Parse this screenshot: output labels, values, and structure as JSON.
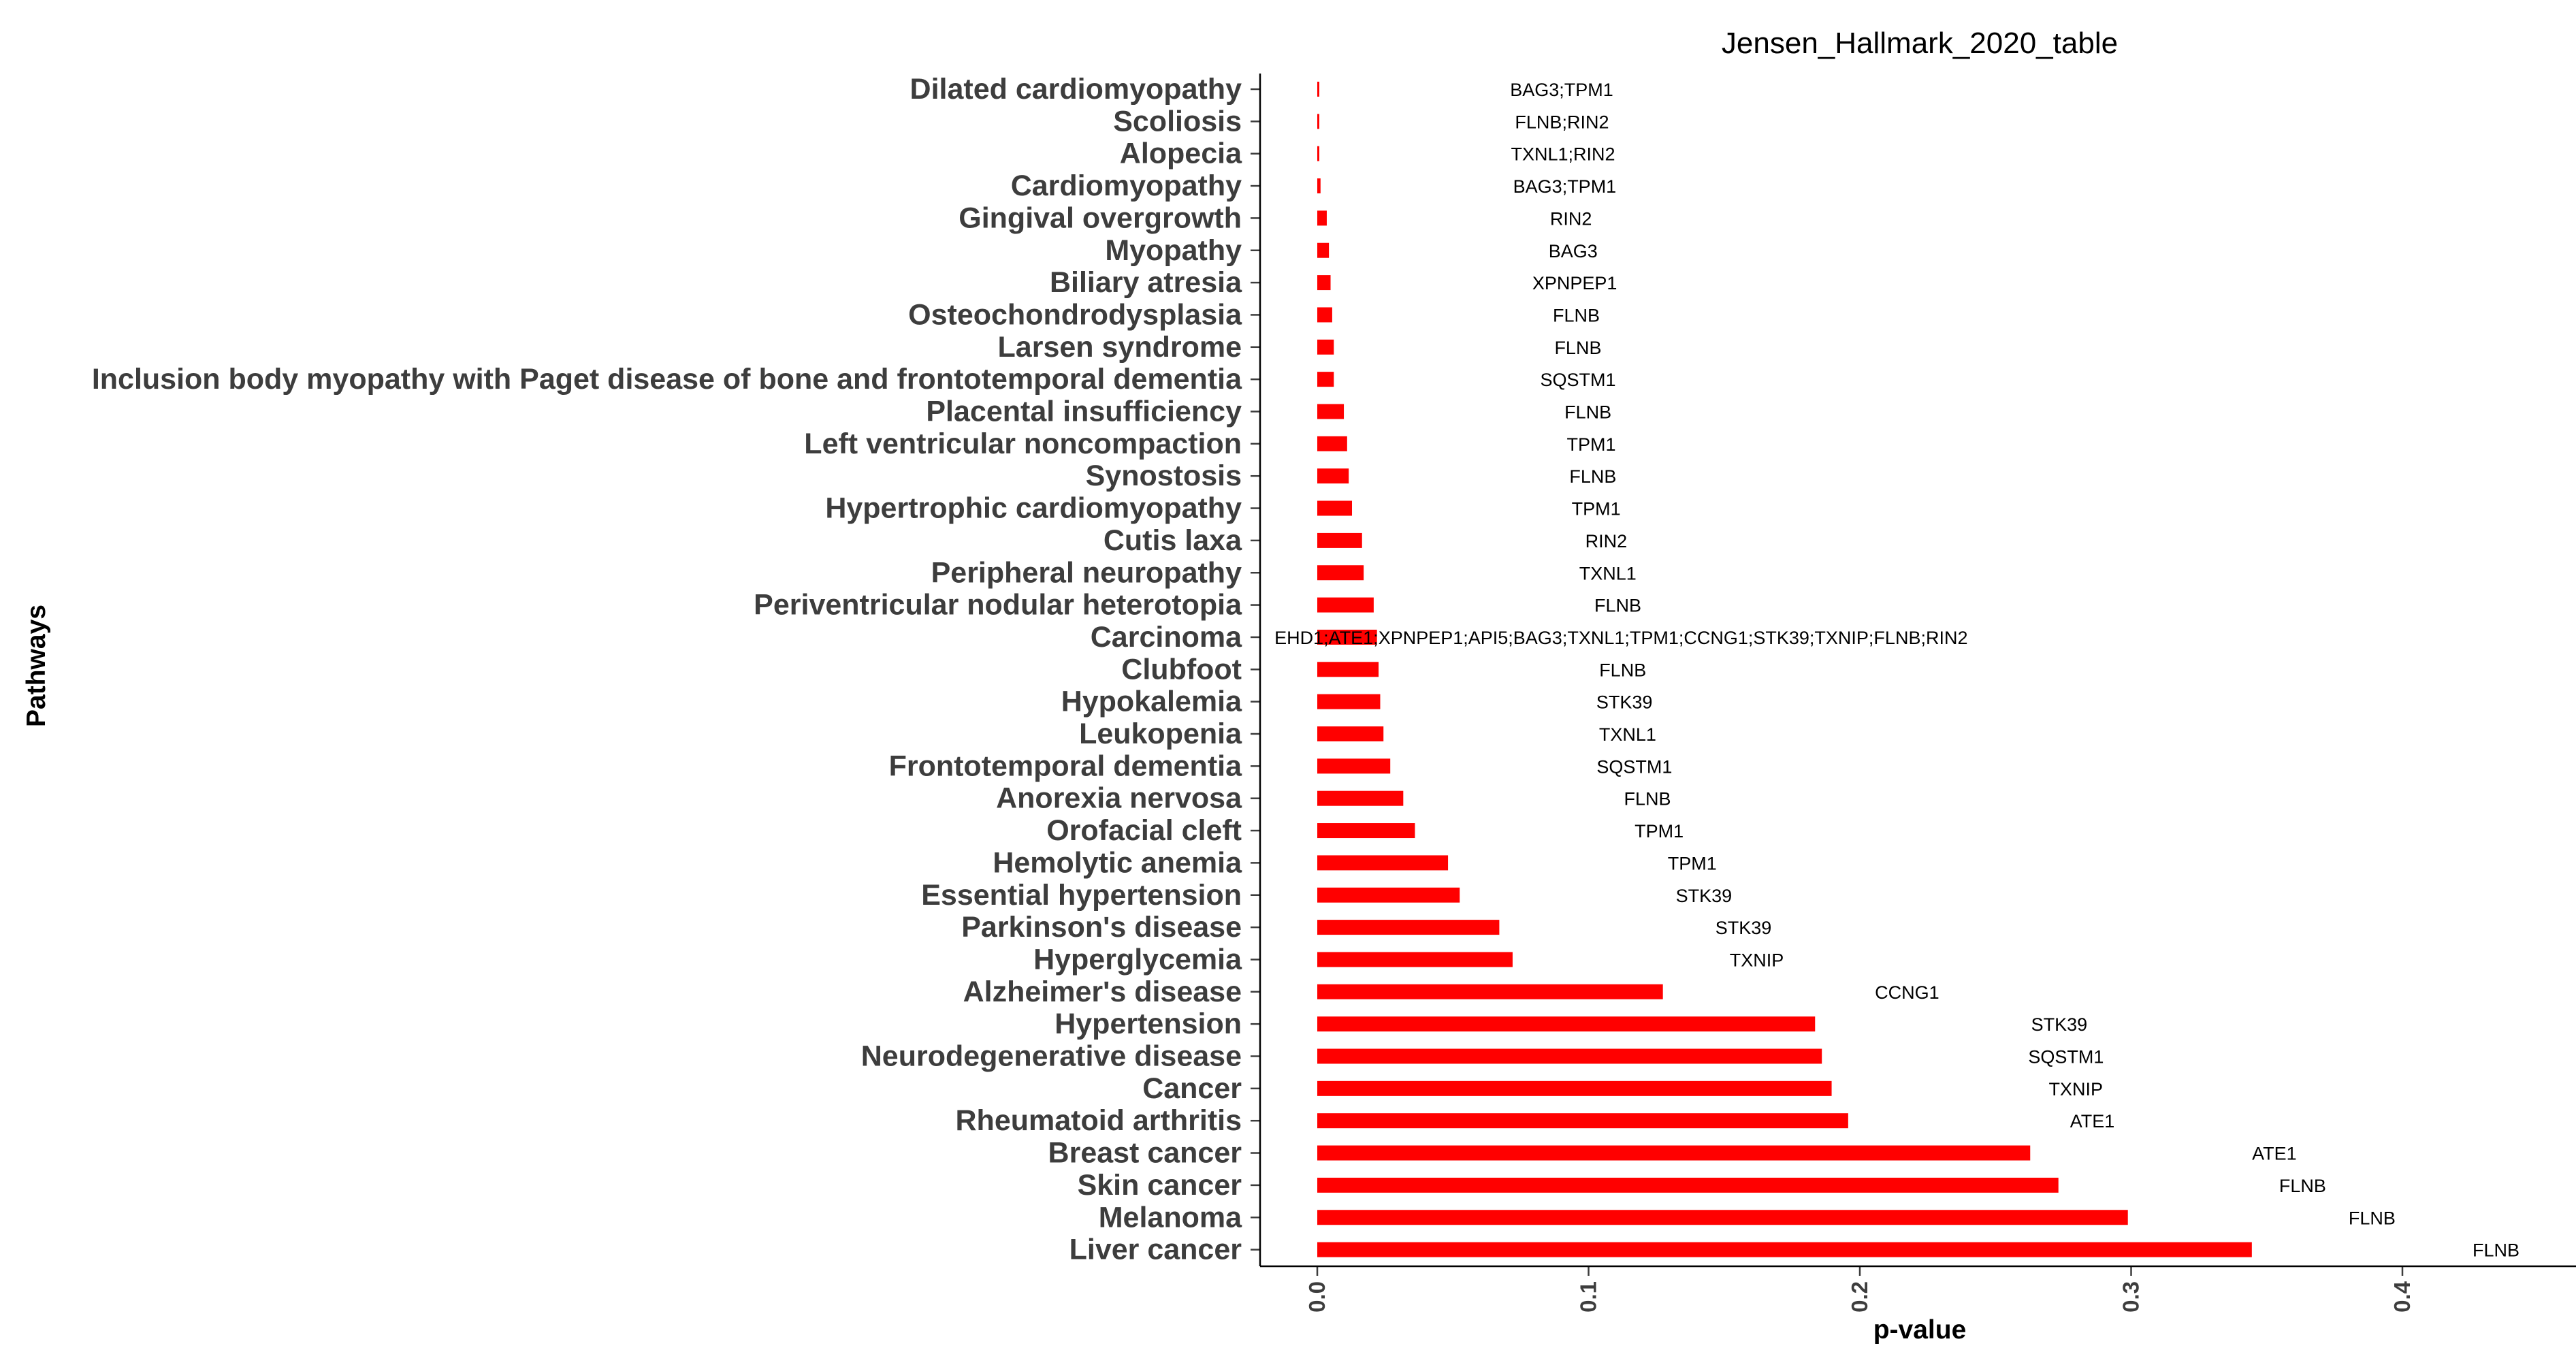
{
  "chart_data": {
    "type": "bar",
    "orientation": "horizontal",
    "title": "Jensen_Hallmark_2020_table",
    "xlabel": "p-value",
    "ylabel": "Pathways",
    "xlim": [
      -0.02,
      0.46
    ],
    "xticks": [
      "0.0",
      "0.1",
      "0.2",
      "0.3",
      "0.4"
    ],
    "xtick_values": [
      0.0,
      0.1,
      0.2,
      0.3,
      0.4
    ],
    "grid": false,
    "bar_color": "#ff0000",
    "categories": [
      "Dilated cardiomyopathy",
      "Scoliosis",
      "Alopecia",
      "Cardiomyopathy",
      "Gingival overgrowth",
      "Myopathy",
      "Biliary atresia",
      "Osteochondrodysplasia",
      "Larsen syndrome",
      "Inclusion body myopathy with Paget disease of bone and frontotemporal dementia",
      "Placental insufficiency",
      "Left ventricular noncompaction",
      "Synostosis",
      "Hypertrophic cardiomyopathy",
      "Cutis laxa",
      "Peripheral neuropathy",
      "Periventricular nodular heterotopia",
      "Carcinoma",
      "Clubfoot",
      "Hypokalemia",
      "Leukopenia",
      "Frontotemporal dementia",
      "Anorexia nervosa",
      "Orofacial cleft",
      "Hemolytic anemia",
      "Essential hypertension",
      "Parkinson's disease",
      "Hyperglycemia",
      "Alzheimer's disease",
      "Hypertension",
      "Neurodegenerative disease",
      "Cancer",
      "Rheumatoid arthritis",
      "Breast cancer",
      "Skin cancer",
      "Melanoma",
      "Liver cancer"
    ],
    "values": [
      0.0001,
      0.0002,
      0.0006,
      0.0012,
      0.0035,
      0.0043,
      0.0049,
      0.0055,
      0.0061,
      0.0061,
      0.0098,
      0.011,
      0.0116,
      0.0128,
      0.0165,
      0.0171,
      0.0208,
      0.022,
      0.0226,
      0.0232,
      0.0244,
      0.0269,
      0.0317,
      0.036,
      0.0482,
      0.0525,
      0.0671,
      0.072,
      0.1274,
      0.1835,
      0.186,
      0.1896,
      0.1957,
      0.2628,
      0.2732,
      0.2988,
      0.3445
    ],
    "genes": [
      "BAG3;TPM1",
      "FLNB;RIN2",
      "TXNL1;RIN2",
      "BAG3;TPM1",
      "RIN2",
      "BAG3",
      "XPNPEP1",
      "FLNB",
      "FLNB",
      "SQSTM1",
      "FLNB",
      "TPM1",
      "FLNB",
      "TPM1",
      "RIN2",
      "TXNL1",
      "FLNB",
      "EHD1;ATE1;XPNPEP1;API5;BAG3;TXNL1;TPM1;CCNG1;STK39;TXNIP;FLNB;RIN2",
      "FLNB",
      "STK39",
      "TXNL1",
      "SQSTM1",
      "FLNB",
      "TPM1",
      "TPM1",
      "STK39",
      "STK39",
      "TXNIP",
      "CCNG1",
      "STK39",
      "SQSTM1",
      "TXNIP",
      "ATE1",
      "ATE1",
      "FLNB",
      "FLNB",
      "FLNB"
    ]
  }
}
